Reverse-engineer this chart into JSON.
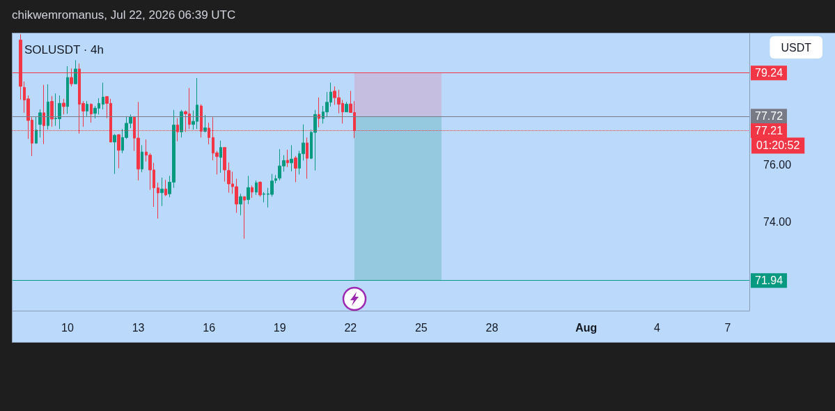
{
  "chart_data": {
    "type": "candlestick",
    "title": "SOLUSDT · 4h",
    "subtitle": "chikwemromanus, Jul 22, 2026 06:39 UTC",
    "x": [
      "2026-07-08T00:00",
      "2026-07-08T04:00",
      "2026-07-08T08:00",
      "2026-07-08T12:00",
      "2026-07-08T16:00",
      "2026-07-08T20:00",
      "2026-07-09T00:00",
      "2026-07-09T04:00",
      "2026-07-09T08:00",
      "2026-07-09T12:00",
      "2026-07-09T16:00",
      "2026-07-09T20:00",
      "2026-07-10T00:00",
      "2026-07-10T04:00",
      "2026-07-10T08:00",
      "2026-07-10T12:00",
      "2026-07-10T16:00",
      "2026-07-10T20:00",
      "2026-07-11T00:00",
      "2026-07-11T04:00",
      "2026-07-11T08:00",
      "2026-07-11T12:00",
      "2026-07-11T16:00",
      "2026-07-11T20:00",
      "2026-07-12T00:00",
      "2026-07-12T04:00",
      "2026-07-12T08:00",
      "2026-07-12T12:00",
      "2026-07-12T16:00",
      "2026-07-12T20:00",
      "2026-07-13T00:00",
      "2026-07-13T04:00",
      "2026-07-13T08:00",
      "2026-07-13T12:00",
      "2026-07-13T16:00",
      "2026-07-13T20:00",
      "2026-07-14T00:00",
      "2026-07-14T04:00",
      "2026-07-14T08:00",
      "2026-07-14T12:00",
      "2026-07-14T16:00",
      "2026-07-14T20:00",
      "2026-07-15T00:00",
      "2026-07-15T04:00",
      "2026-07-15T08:00",
      "2026-07-15T12:00",
      "2026-07-15T16:00",
      "2026-07-15T20:00",
      "2026-07-16T00:00",
      "2026-07-16T04:00",
      "2026-07-16T08:00",
      "2026-07-16T12:00",
      "2026-07-16T16:00",
      "2026-07-16T20:00",
      "2026-07-17T00:00",
      "2026-07-17T04:00",
      "2026-07-17T08:00",
      "2026-07-17T12:00",
      "2026-07-17T16:00",
      "2026-07-17T20:00",
      "2026-07-18T00:00",
      "2026-07-18T04:00",
      "2026-07-18T08:00",
      "2026-07-18T12:00",
      "2026-07-18T16:00",
      "2026-07-18T20:00",
      "2026-07-19T00:00",
      "2026-07-19T04:00",
      "2026-07-19T08:00",
      "2026-07-19T12:00",
      "2026-07-19T16:00",
      "2026-07-19T20:00",
      "2026-07-20T00:00",
      "2026-07-20T04:00",
      "2026-07-20T08:00",
      "2026-07-20T12:00",
      "2026-07-20T16:00",
      "2026-07-20T20:00",
      "2026-07-21T00:00",
      "2026-07-21T04:00",
      "2026-07-21T08:00",
      "2026-07-21T12:00",
      "2026-07-21T16:00",
      "2026-07-21T20:00",
      "2026-07-22T00:00",
      "2026-07-22T04:00"
    ],
    "ohlc": [
      [
        80.4,
        80.6,
        78.3,
        78.77
      ],
      [
        78.73,
        78.94,
        77.84,
        78.29
      ],
      [
        78.33,
        78.45,
        76.92,
        77.57
      ],
      [
        77.58,
        77.68,
        76.32,
        76.77
      ],
      [
        76.77,
        77.7,
        76.75,
        77.23
      ],
      [
        77.43,
        77.96,
        76.97,
        77.84
      ],
      [
        77.84,
        78.82,
        76.74,
        77.39
      ],
      [
        77.39,
        78.84,
        77.25,
        78.22
      ],
      [
        78.24,
        78.43,
        77.35,
        77.62
      ],
      [
        77.63,
        78.52,
        77.38,
        77.65
      ],
      [
        77.63,
        78.45,
        77.27,
        78.17
      ],
      [
        78.18,
        78.33,
        77.78,
        78.06
      ],
      [
        78.06,
        79.48,
        77.8,
        79.08
      ],
      [
        79.08,
        79.4,
        78.77,
        78.86
      ],
      [
        78.86,
        79.69,
        78.84,
        79.38
      ],
      [
        79.38,
        79.57,
        77.11,
        78.14
      ],
      [
        78.17,
        78.25,
        77.35,
        77.9
      ],
      [
        77.9,
        78.25,
        77.72,
        78.14
      ],
      [
        78.14,
        78.17,
        77.49,
        77.8
      ],
      [
        77.82,
        78.08,
        77.64,
        78.0
      ],
      [
        78.0,
        78.35,
        77.78,
        78.17
      ],
      [
        78.14,
        78.9,
        77.96,
        78.39
      ],
      [
        78.41,
        78.41,
        77.65,
        78.17
      ],
      [
        78.17,
        78.33,
        76.81,
        76.81
      ],
      [
        76.81,
        77.09,
        75.69,
        77.05
      ],
      [
        77.07,
        77.09,
        75.89,
        76.52
      ],
      [
        76.52,
        77.27,
        76.42,
        76.97
      ],
      [
        76.97,
        77.72,
        76.92,
        77.47
      ],
      [
        77.47,
        77.78,
        77.3,
        77.7
      ],
      [
        77.7,
        77.72,
        76.5,
        76.95
      ],
      [
        76.95,
        78.22,
        75.46,
        75.86
      ],
      [
        75.86,
        76.7,
        75.75,
        76.46
      ],
      [
        76.46,
        76.9,
        76.13,
        76.35
      ],
      [
        76.35,
        76.42,
        75.13,
        75.83
      ],
      [
        75.83,
        76.08,
        74.53,
        75.2
      ],
      [
        75.2,
        75.38,
        74.12,
        75.02
      ],
      [
        75.03,
        75.56,
        74.56,
        75.16
      ],
      [
        75.16,
        75.48,
        74.91,
        74.95
      ],
      [
        74.99,
        75.62,
        74.87,
        75.4
      ],
      [
        75.4,
        77.94,
        75.2,
        77.41
      ],
      [
        77.41,
        77.65,
        76.84,
        77.17
      ],
      [
        77.17,
        77.94,
        76.97,
        77.88
      ],
      [
        77.88,
        77.92,
        77.17,
        77.8
      ],
      [
        77.8,
        78.71,
        77.27,
        77.43
      ],
      [
        77.43,
        77.92,
        77.25,
        77.54
      ],
      [
        77.54,
        79.06,
        77.27,
        78.11
      ],
      [
        78.08,
        78.14,
        76.97,
        77.19
      ],
      [
        77.19,
        77.76,
        77.15,
        77.31
      ],
      [
        77.3,
        77.49,
        76.73,
        76.97
      ],
      [
        76.97,
        77.68,
        76.17,
        76.42
      ],
      [
        76.43,
        76.5,
        75.67,
        76.3
      ],
      [
        76.27,
        76.86,
        75.73,
        76.62
      ],
      [
        76.62,
        76.62,
        75.42,
        75.83
      ],
      [
        75.81,
        76.09,
        75.03,
        75.34
      ],
      [
        75.34,
        75.77,
        74.99,
        75.24
      ],
      [
        75.24,
        75.52,
        74.32,
        74.63
      ],
      [
        74.63,
        74.99,
        74.24,
        74.89
      ],
      [
        74.89,
        74.89,
        73.41,
        74.77
      ],
      [
        74.79,
        75.62,
        74.63,
        75.21
      ],
      [
        75.21,
        75.28,
        74.85,
        75.05
      ],
      [
        75.05,
        75.46,
        74.95,
        75.38
      ],
      [
        75.4,
        75.43,
        74.89,
        74.95
      ],
      [
        74.97,
        75.05,
        74.69,
        74.99
      ],
      [
        74.97,
        75.2,
        74.51,
        74.99
      ],
      [
        74.97,
        75.69,
        74.89,
        75.44
      ],
      [
        75.46,
        75.65,
        75.36,
        75.52
      ],
      [
        75.54,
        76.56,
        75.46,
        75.97
      ],
      [
        75.97,
        76.35,
        75.77,
        76.16
      ],
      [
        76.17,
        76.54,
        75.93,
        76.08
      ],
      [
        76.08,
        76.7,
        75.78,
        76.21
      ],
      [
        76.25,
        76.32,
        75.4,
        75.89
      ],
      [
        75.89,
        76.5,
        75.67,
        76.4
      ],
      [
        76.4,
        77.43,
        76.16,
        76.78
      ],
      [
        76.78,
        76.97,
        75.52,
        76.24
      ],
      [
        76.24,
        77.25,
        76.21,
        77.15
      ],
      [
        77.15,
        77.94,
        75.81,
        77.78
      ],
      [
        77.78,
        78.38,
        77.33,
        77.64
      ],
      [
        77.64,
        78.08,
        77.46,
        77.87
      ],
      [
        77.87,
        78.57,
        77.68,
        78.21
      ],
      [
        78.21,
        78.9,
        78.06,
        78.57
      ],
      [
        78.6,
        78.77,
        78.12,
        78.37
      ],
      [
        78.37,
        78.65,
        77.82,
        78.14
      ],
      [
        78.17,
        78.29,
        77.46,
        77.87
      ],
      [
        77.87,
        78.22,
        77.87,
        78.14
      ],
      [
        78.15,
        78.61,
        77.84,
        77.85
      ],
      [
        77.85,
        78.25,
        76.95,
        77.21
      ]
    ],
    "colors": [
      "#f23645",
      "#f23645",
      "#f23645",
      "#f23645",
      "#089981",
      "#089981",
      "#f23645",
      "#089981",
      "#f23645",
      "#089981",
      "#089981",
      "#f23645",
      "#089981",
      "#f23645",
      "#089981",
      "#f23645",
      "#f23645",
      "#089981",
      "#f23645",
      "#089981",
      "#089981",
      "#089981",
      "#f23645",
      "#f23645",
      "#089981",
      "#f23645",
      "#089981",
      "#089981",
      "#089981",
      "#f23645",
      "#f23645",
      "#089981",
      "#f23645",
      "#f23645",
      "#f23645",
      "#f23645",
      "#089981",
      "#f23645",
      "#089981",
      "#089981",
      "#f23645",
      "#089981",
      "#f23645",
      "#f23645",
      "#089981",
      "#089981",
      "#f23645",
      "#089981",
      "#f23645",
      "#f23645",
      "#f23645",
      "#089981",
      "#f23645",
      "#f23645",
      "#f23645",
      "#f23645",
      "#089981",
      "#f23645",
      "#089981",
      "#f23645",
      "#089981",
      "#f23645",
      "#089981",
      "#089981",
      "#089981",
      "#089981",
      "#089981",
      "#089981",
      "#f23645",
      "#089981",
      "#f23645",
      "#089981",
      "#089981",
      "#f23645",
      "#089981",
      "#089981",
      "#f23645",
      "#089981",
      "#089981",
      "#089981",
      "#f23645",
      "#f23645",
      "#f23645",
      "#089981",
      "#f23645",
      "#f23645"
    ],
    "xlim": [
      "2026-07-07T16:00",
      "2026-08-07T22:00"
    ],
    "xticks": [
      {
        "value": "2026-07-10",
        "label": "10"
      },
      {
        "value": "2026-07-13",
        "label": "13"
      },
      {
        "value": "2026-07-16",
        "label": "16"
      },
      {
        "value": "2026-07-19",
        "label": "19"
      },
      {
        "value": "2026-07-22",
        "label": "22"
      },
      {
        "value": "2026-07-25",
        "label": "25"
      },
      {
        "value": "2026-07-28",
        "label": "28"
      },
      {
        "value": "2026-08-01",
        "label": "Aug"
      },
      {
        "value": "2026-08-04",
        "label": "4"
      },
      {
        "value": "2026-08-07",
        "label": "7"
      }
    ],
    "ylim": [
      70.88,
      80.63
    ],
    "yticks": [
      {
        "value": 74,
        "label": "74.00"
      },
      {
        "value": 76,
        "label": "76.00"
      }
    ],
    "ref_lines": [
      {
        "axis": "y",
        "value": 79.24,
        "label": "79.24",
        "color": "#f23645",
        "line_style": "solid"
      },
      {
        "axis": "y",
        "value": 77.72,
        "label": "77.72",
        "color": "#787b86",
        "line_style": "solid"
      },
      {
        "axis": "y",
        "value": 77.21,
        "label": "77.21",
        "color": "#f23645",
        "line_style": "dotted"
      },
      {
        "axis": "y",
        "value": 71.94,
        "label": "71.94",
        "color": "#089981",
        "line_style": "solid"
      }
    ],
    "bands": [
      {
        "axis": "y",
        "from": 77.72,
        "to": 79.24,
        "color": "#c7b8da"
      },
      {
        "axis": "y",
        "from": 71.94,
        "to": 77.72,
        "color": "#8dc6da"
      }
    ],
    "annotations": [
      "USDT",
      "01:20:52"
    ]
  }
}
